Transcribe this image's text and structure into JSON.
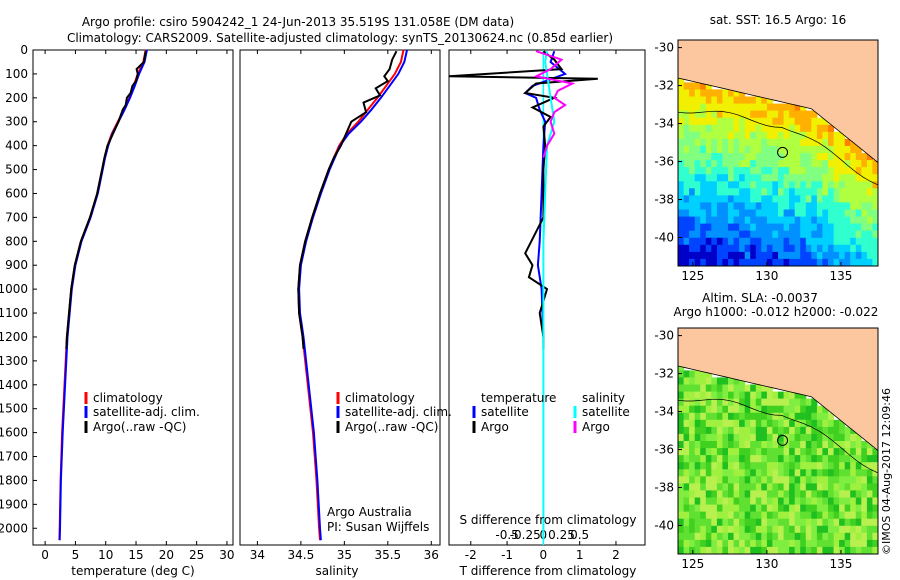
{
  "figure": {
    "title_line1": "Argo profile: csiro 5904242_1 24-Jun-2013 35.519S 131.058E (DM data)",
    "title_line2": "Climatology: CARS2009. Satellite-adjusted climatology: synTS_20130624.nc (0.85d earlier)",
    "credit": "©IMOS 04-Aug-2017 12:09:46",
    "argo_note_line1": "Argo Australia",
    "argo_note_line2": "PI: Susan Wijffels"
  },
  "colors": {
    "climatology": "#ff0000",
    "satellite_adj": "#0000ff",
    "argo": "#000000",
    "temperature_satellite": "#0000ff",
    "temperature_argo": "#000000",
    "salinity_satellite": "#00ffff",
    "salinity_argo": "#ff00ff",
    "land": "#fcc79f",
    "frame": "#000000"
  },
  "chart_data": [
    {
      "id": "temperature",
      "type": "line",
      "xlabel": "temperature (deg C)",
      "ylabel": "",
      "xlim": [
        -2,
        31
      ],
      "ylim": [
        2070,
        0
      ],
      "xticks": [
        0,
        5,
        10,
        15,
        20,
        25,
        30
      ],
      "yticks": [
        0,
        100,
        200,
        300,
        400,
        500,
        600,
        700,
        800,
        900,
        1000,
        1100,
        1200,
        1300,
        1400,
        1500,
        1600,
        1700,
        1800,
        1900,
        2000
      ],
      "legend": [
        "climatology",
        "satellite-adj. clim.",
        "Argo(..raw -QC)"
      ],
      "series": [
        {
          "name": "climatology",
          "color": "#ff0000",
          "depth": [
            0,
            50,
            100,
            150,
            200,
            250,
            300,
            350,
            400,
            450,
            500,
            600,
            700,
            800,
            900,
            1000,
            1200,
            1400,
            1600,
            1800,
            2000,
            2050
          ],
          "values": [
            16.6,
            16.2,
            15.3,
            14.6,
            13.9,
            13.0,
            12.0,
            11.0,
            10.3,
            9.8,
            9.4,
            8.6,
            7.4,
            5.9,
            4.9,
            4.3,
            3.6,
            3.2,
            2.8,
            2.55,
            2.4,
            2.35
          ]
        },
        {
          "name": "satellite-adj. clim.",
          "color": "#0000ff",
          "depth": [
            0,
            50,
            100,
            150,
            200,
            250,
            300,
            350,
            400,
            450,
            500,
            600,
            700,
            800,
            900,
            1000,
            1200,
            1400,
            1600,
            1800,
            2000,
            2050
          ],
          "values": [
            16.8,
            16.4,
            15.5,
            14.8,
            14.0,
            13.1,
            12.1,
            11.1,
            10.4,
            9.9,
            9.5,
            8.7,
            7.5,
            6.0,
            5.0,
            4.4,
            3.7,
            3.3,
            2.9,
            2.6,
            2.45,
            2.4
          ]
        },
        {
          "name": "Argo(..raw -QC)",
          "color": "#000000",
          "depth": [
            5,
            50,
            80,
            100,
            130,
            150,
            180,
            200,
            230,
            250,
            300,
            350,
            400,
            450,
            500,
            600,
            700,
            800,
            900,
            1000,
            1200,
            1250
          ],
          "values": [
            16.6,
            16.3,
            15.1,
            15.3,
            15.0,
            14.4,
            14.1,
            13.5,
            13.3,
            12.8,
            12.1,
            11.2,
            10.3,
            9.8,
            9.4,
            8.6,
            7.4,
            5.9,
            4.9,
            4.3,
            3.6,
            3.5
          ]
        }
      ]
    },
    {
      "id": "salinity",
      "type": "line",
      "xlabel": "salinity",
      "ylabel": "",
      "xlim": [
        33.8,
        36.1
      ],
      "ylim": [
        2070,
        0
      ],
      "xticks": [
        34,
        34.5,
        35,
        35.5,
        36
      ],
      "xtick_labels": [
        "34",
        "34.5",
        "35",
        "35.5",
        "36"
      ],
      "legend": [
        "climatology",
        "satellite-adj. clim.",
        "Argo(..raw -QC)"
      ],
      "series": [
        {
          "name": "climatology",
          "color": "#ff0000",
          "depth": [
            0,
            50,
            100,
            150,
            200,
            250,
            300,
            350,
            400,
            500,
            600,
            700,
            800,
            900,
            1000,
            1100,
            1200,
            1400,
            1600,
            1800,
            2000,
            2050
          ],
          "values": [
            35.68,
            35.65,
            35.58,
            35.48,
            35.38,
            35.27,
            35.16,
            35.03,
            34.94,
            34.82,
            34.72,
            34.63,
            34.55,
            34.49,
            34.47,
            34.48,
            34.52,
            34.58,
            34.64,
            34.68,
            34.71,
            34.72
          ]
        },
        {
          "name": "satellite-adj. clim.",
          "color": "#0000ff",
          "depth": [
            0,
            50,
            100,
            150,
            200,
            250,
            300,
            350,
            400,
            500,
            600,
            700,
            800,
            900,
            1000,
            1100,
            1200,
            1400,
            1600,
            1800,
            2000,
            2050
          ],
          "values": [
            35.72,
            35.69,
            35.62,
            35.52,
            35.42,
            35.31,
            35.19,
            35.05,
            34.95,
            34.83,
            34.73,
            34.64,
            34.56,
            34.5,
            34.48,
            34.49,
            34.53,
            34.59,
            34.65,
            34.69,
            34.72,
            34.73
          ]
        },
        {
          "name": "Argo(..raw -QC)",
          "color": "#000000",
          "depth": [
            5,
            40,
            80,
            110,
            130,
            160,
            190,
            220,
            260,
            300,
            350,
            400,
            450,
            500,
            600,
            700,
            800,
            900,
            1000,
            1100,
            1200,
            1250
          ],
          "values": [
            35.6,
            35.55,
            35.52,
            35.46,
            35.5,
            35.36,
            35.41,
            35.22,
            35.25,
            35.08,
            35.02,
            34.96,
            34.88,
            34.82,
            34.72,
            34.63,
            34.55,
            34.49,
            34.47,
            34.48,
            34.52,
            34.53
          ]
        }
      ]
    },
    {
      "id": "difference",
      "type": "line",
      "xlabel": "T difference from climatology",
      "xlabel_top": "S difference from climatology",
      "ylabel": "",
      "xlim": [
        -2.6,
        2.8
      ],
      "ylim": [
        2070,
        0
      ],
      "xticks": [
        -2,
        -1,
        0,
        1,
        2
      ],
      "xtick_labels": [
        "-2",
        "-1",
        "0",
        "1",
        "2"
      ],
      "s_ticks": [
        "-0.5",
        "-0.25",
        "0",
        "0.25",
        "0.5"
      ],
      "legend_titles": [
        "temperature",
        "salinity"
      ],
      "legend": [
        "satellite",
        "Argo",
        "satellite",
        "Argo"
      ],
      "series": [
        {
          "name": "temperature satellite",
          "color": "#0000ff",
          "depth": [
            5,
            50,
            100,
            150,
            180,
            200,
            250,
            300,
            400,
            600,
            800,
            900,
            1000,
            1200
          ],
          "values": [
            0.3,
            0.2,
            0.6,
            -0.3,
            -0.5,
            -0.2,
            -0.1,
            0.05,
            0.0,
            -0.05,
            -0.1,
            -0.15,
            -0.05,
            0.0
          ]
        },
        {
          "name": "temperature Argo",
          "color": "#000000",
          "depth": [
            5,
            40,
            80,
            110,
            120,
            140,
            180,
            200,
            240,
            280,
            320,
            400,
            500,
            700,
            850,
            900,
            950,
            1000,
            1050,
            1100,
            1200,
            1250
          ],
          "values": [
            0.0,
            0.3,
            0.5,
            -2.6,
            1.5,
            -0.2,
            -0.5,
            0.3,
            -0.3,
            0.2,
            0.0,
            0.05,
            0.0,
            0.0,
            -0.5,
            -0.3,
            -0.4,
            0.1,
            0.0,
            -0.1,
            0.0,
            0.0
          ]
        },
        {
          "name": "salinity satellite",
          "color": "#00ffff",
          "depth": [
            5,
            50,
            100,
            150,
            200,
            300,
            400,
            600,
            800,
            1000,
            1500,
            2000,
            2050
          ],
          "values": [
            0.1,
            0.05,
            0.1,
            0.15,
            0.2,
            0.3,
            0.1,
            0.05,
            0.0,
            0.0,
            0.0,
            0.0,
            0.0
          ]
        },
        {
          "name": "salinity Argo",
          "color": "#ff00ff",
          "depth": [
            5,
            40,
            80,
            110,
            140,
            170,
            200,
            230,
            260,
            300,
            350,
            400,
            450
          ],
          "values": [
            -0.2,
            0.5,
            0.2,
            -0.2,
            0.8,
            0.4,
            0.3,
            0.6,
            0.3,
            0.2,
            0.3,
            0.1,
            0.0
          ]
        }
      ]
    },
    {
      "id": "sst_map",
      "type": "heatmap",
      "title": "sat. SST: 16.5 Argo: 16",
      "xlim": [
        124,
        137.5
      ],
      "ylim": [
        -41.5,
        -29.6
      ],
      "xticks": [
        125,
        130,
        135
      ],
      "yticks": [
        -30,
        -32,
        -34,
        -36,
        -38,
        -40
      ],
      "ytick_labels": [
        "-30",
        "-32",
        "-34",
        "-36",
        "-38",
        "-40"
      ],
      "float_position": [
        131.058,
        -35.519
      ]
    },
    {
      "id": "sla_map",
      "type": "heatmap",
      "title_line1": "Altim. SLA: -0.0037",
      "title_line2": "Argo h1000: -0.012 h2000: -0.022",
      "xlim": [
        124,
        137.5
      ],
      "ylim": [
        -41.5,
        -29.6
      ],
      "xticks": [
        125,
        130,
        135
      ],
      "yticks": [
        -30,
        -32,
        -34,
        -36,
        -38,
        -40
      ],
      "ytick_labels": [
        "-30",
        "-32",
        "-34",
        "-36",
        "-38",
        "-40"
      ],
      "float_position": [
        131.058,
        -35.519
      ]
    }
  ]
}
